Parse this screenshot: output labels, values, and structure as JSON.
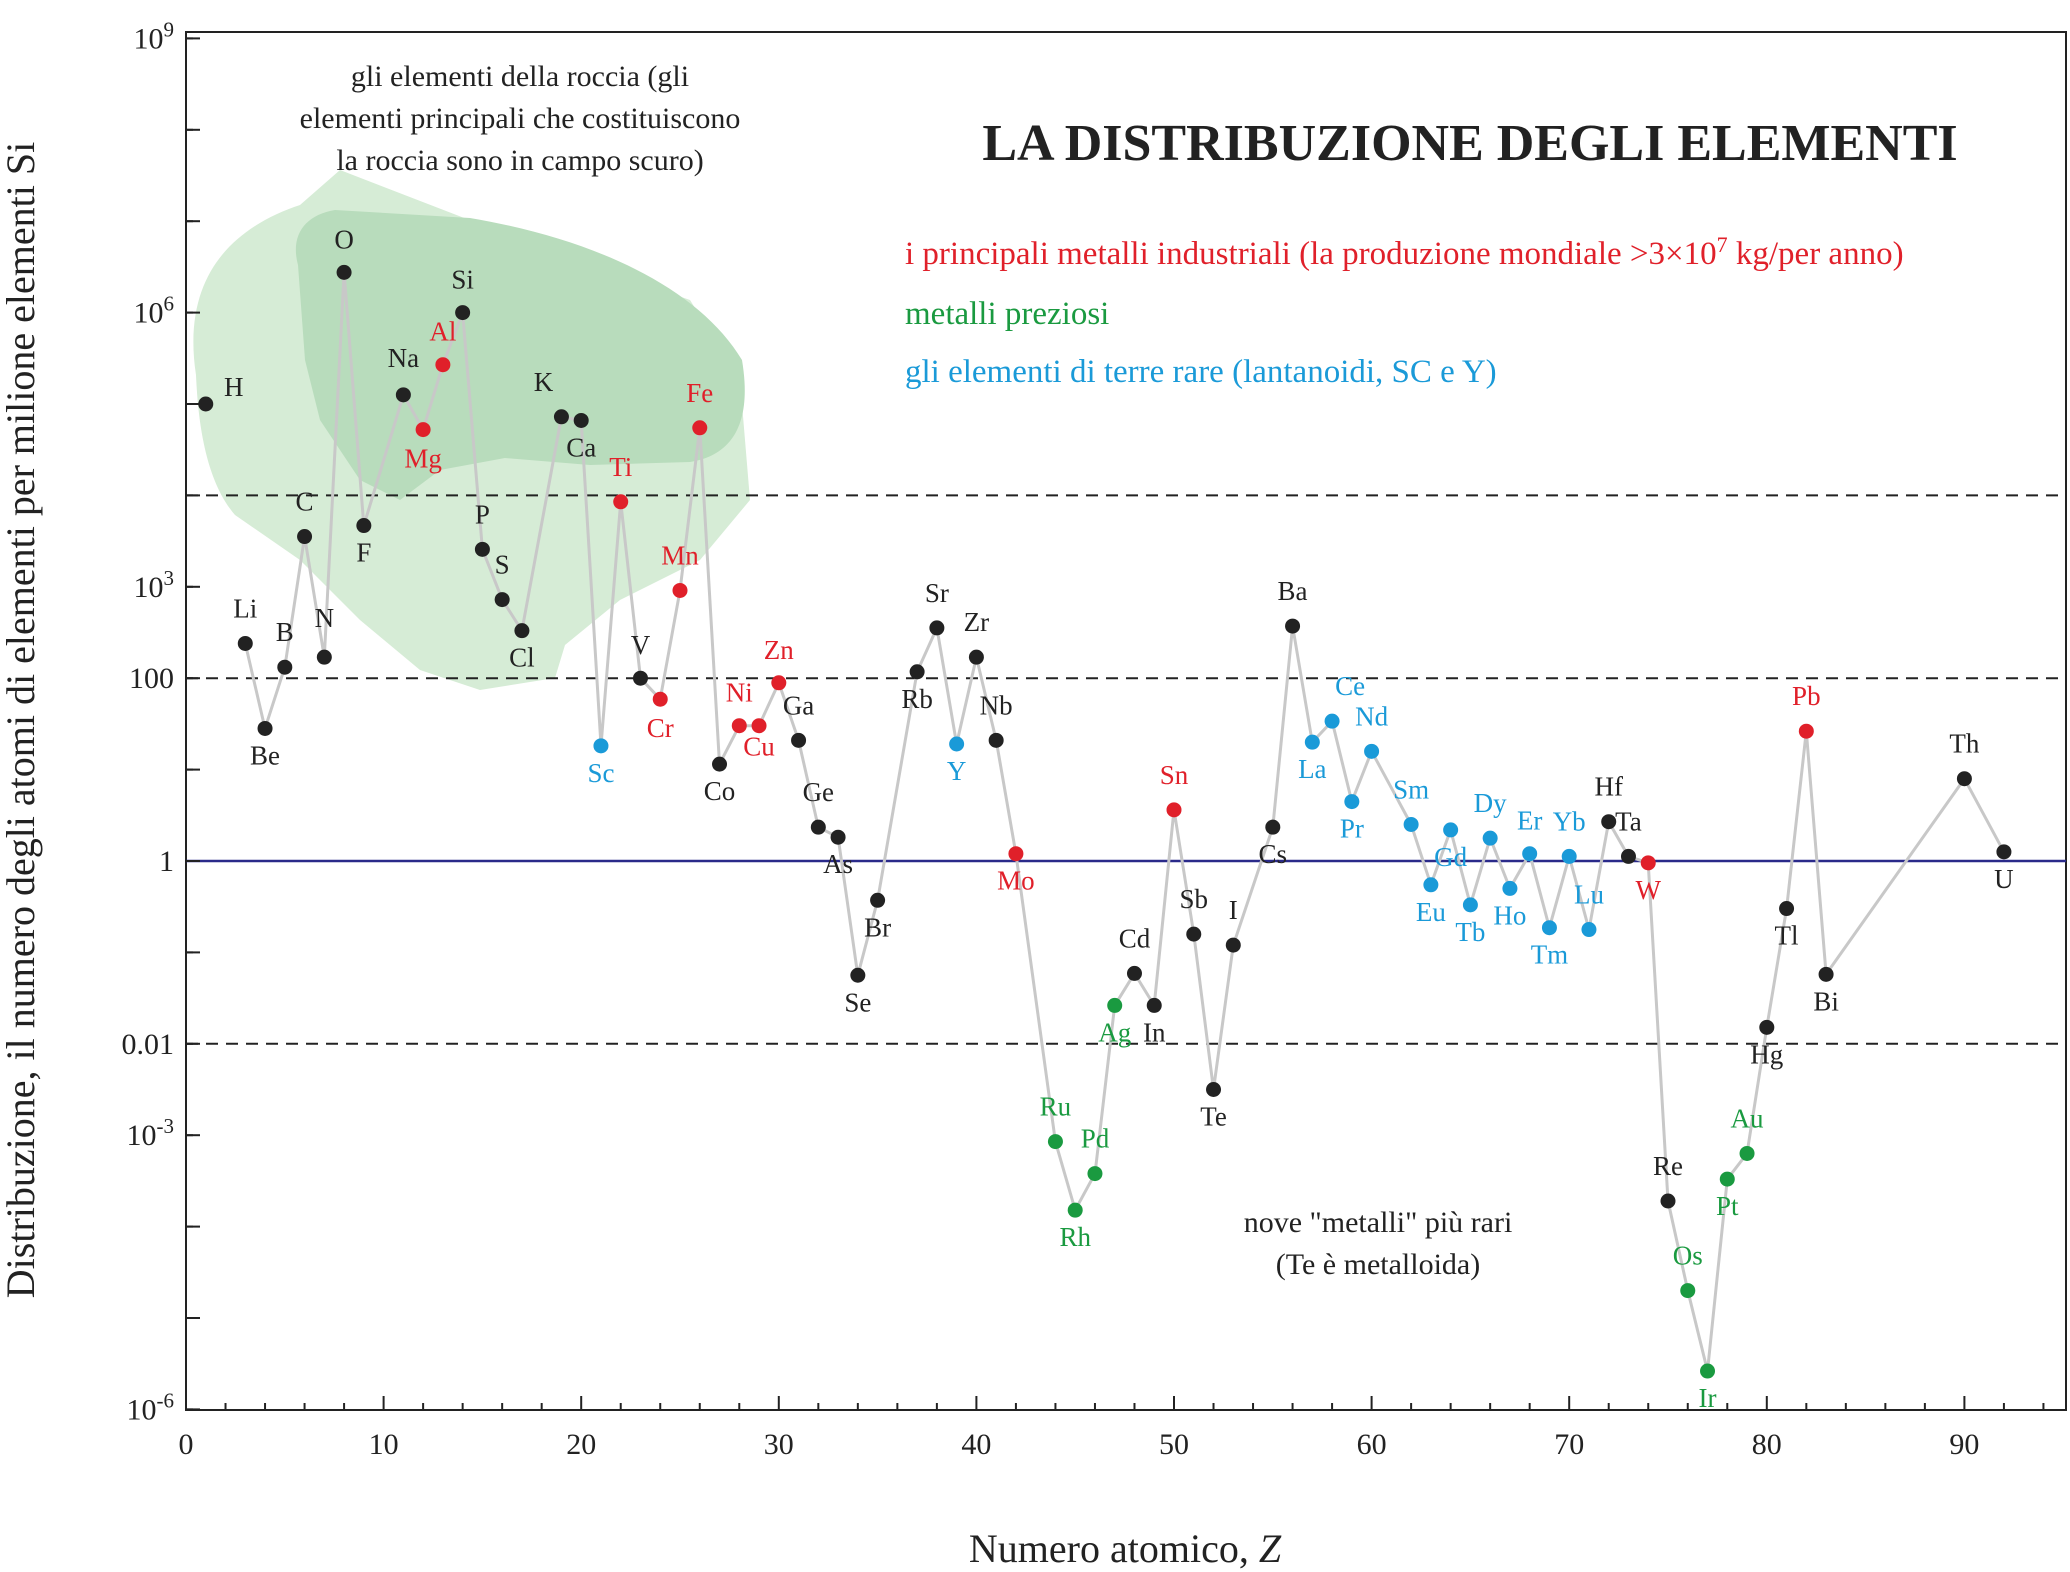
{
  "chart_data": {
    "type": "scatter",
    "title": "LA DISTRIBUZIONE DEGLI ELEMENTI",
    "xlabel_main": "Numero atomico, ",
    "xlabel_var": "Z",
    "ylabel": "Distribuzione, il numero degli atomi di elementi per milione elementi Si",
    "xlim": [
      0,
      95
    ],
    "ylim_log10": [
      -6,
      9
    ],
    "y_scale": "log",
    "xticks": [
      0,
      10,
      20,
      30,
      40,
      50,
      60,
      70,
      80,
      90
    ],
    "yticks": [
      {
        "log": 9,
        "base": "10",
        "exp": "9"
      },
      {
        "log": 6,
        "base": "10",
        "exp": "6"
      },
      {
        "log": 3,
        "base": "10",
        "exp": "3"
      },
      {
        "log": 2,
        "base": "100",
        "exp": ""
      },
      {
        "log": 0,
        "base": "1",
        "exp": ""
      },
      {
        "log": -2,
        "base": "0.01",
        "exp": ""
      },
      {
        "log": -3,
        "base": "10",
        "exp": "-3"
      },
      {
        "log": -6,
        "base": "10",
        "exp": "-6"
      }
    ],
    "reference_lines": [
      {
        "log": 4,
        "style": "dashed"
      },
      {
        "log": 2,
        "style": "dashed"
      },
      {
        "log": -2,
        "style": "dashed"
      },
      {
        "log": 0,
        "style": "solid",
        "color": "#2a2a8a"
      }
    ],
    "colors": {
      "other": "#222222",
      "industrial": "#e0202a",
      "precious": "#1a9a40",
      "rare_earth": "#1a9ad8",
      "line": "#c8c8c8",
      "region_light": "#d6ecd6",
      "region_dark": "#b8dcbc"
    },
    "elements": [
      {
        "s": "H",
        "z": 1,
        "log": 5.0,
        "c": "other",
        "dx": 28,
        "dy": -8
      },
      {
        "s": "Li",
        "z": 3,
        "log": 2.38,
        "c": "other",
        "dx": 0,
        "dy": -26
      },
      {
        "s": "Be",
        "z": 4,
        "log": 1.45,
        "c": "other",
        "dx": 0,
        "dy": 36
      },
      {
        "s": "B",
        "z": 5,
        "log": 2.12,
        "c": "other",
        "dx": 0,
        "dy": -26
      },
      {
        "s": "C",
        "z": 6,
        "log": 3.55,
        "c": "other",
        "dx": 0,
        "dy": -26
      },
      {
        "s": "N",
        "z": 7,
        "log": 2.23,
        "c": "other",
        "dx": 0,
        "dy": -30
      },
      {
        "s": "O",
        "z": 8,
        "log": 6.44,
        "c": "other",
        "dx": 0,
        "dy": -24
      },
      {
        "s": "F",
        "z": 9,
        "log": 3.67,
        "c": "other",
        "dx": 0,
        "dy": 36
      },
      {
        "s": "Na",
        "z": 11,
        "log": 5.1,
        "c": "other",
        "dx": 0,
        "dy": -28
      },
      {
        "s": "Mg",
        "z": 12,
        "log": 4.72,
        "c": "industrial",
        "dx": 0,
        "dy": 38
      },
      {
        "s": "Al",
        "z": 13,
        "log": 5.43,
        "c": "industrial",
        "dx": 0,
        "dy": -24
      },
      {
        "s": "Si",
        "z": 14,
        "log": 6.0,
        "c": "other",
        "dx": 0,
        "dy": -24
      },
      {
        "s": "P",
        "z": 15,
        "log": 3.41,
        "c": "other",
        "dx": 0,
        "dy": -26
      },
      {
        "s": "S",
        "z": 16,
        "log": 2.86,
        "c": "other",
        "dx": 0,
        "dy": -26
      },
      {
        "s": "Cl",
        "z": 17,
        "log": 2.52,
        "c": "other",
        "dx": 0,
        "dy": 36
      },
      {
        "s": "K",
        "z": 19,
        "log": 4.86,
        "c": "other",
        "dx": -18,
        "dy": -26
      },
      {
        "s": "Ca",
        "z": 20,
        "log": 4.82,
        "c": "other",
        "dx": 0,
        "dy": 36
      },
      {
        "s": "Sc",
        "z": 21,
        "log": 1.26,
        "c": "rare_earth",
        "dx": 0,
        "dy": 36
      },
      {
        "s": "Ti",
        "z": 22,
        "log": 3.93,
        "c": "industrial",
        "dx": 0,
        "dy": -26
      },
      {
        "s": "V",
        "z": 23,
        "log": 2.0,
        "c": "other",
        "dx": 0,
        "dy": -24
      },
      {
        "s": "Cr",
        "z": 24,
        "log": 1.77,
        "c": "industrial",
        "dx": 0,
        "dy": 38
      },
      {
        "s": "Mn",
        "z": 25,
        "log": 2.96,
        "c": "industrial",
        "dx": 0,
        "dy": -26
      },
      {
        "s": "Fe",
        "z": 26,
        "log": 4.74,
        "c": "industrial",
        "dx": 0,
        "dy": -26
      },
      {
        "s": "Co",
        "z": 27,
        "log": 1.06,
        "c": "other",
        "dx": 0,
        "dy": 36
      },
      {
        "s": "Ni",
        "z": 28,
        "log": 1.48,
        "c": "industrial",
        "dx": 0,
        "dy": -24
      },
      {
        "s": "Cu",
        "z": 29,
        "log": 1.48,
        "c": "industrial",
        "dx": 0,
        "dy": 30
      },
      {
        "s": "Zn",
        "z": 30,
        "log": 1.95,
        "c": "industrial",
        "dx": 0,
        "dy": -24
      },
      {
        "s": "Ga",
        "z": 31,
        "log": 1.32,
        "c": "other",
        "dx": 0,
        "dy": -26
      },
      {
        "s": "Ge",
        "z": 32,
        "log": 0.37,
        "c": "other",
        "dx": 0,
        "dy": -26
      },
      {
        "s": "As",
        "z": 33,
        "log": 0.26,
        "c": "other",
        "dx": 0,
        "dy": 36
      },
      {
        "s": "Se",
        "z": 34,
        "log": -1.25,
        "c": "other",
        "dx": 0,
        "dy": 36
      },
      {
        "s": "Br",
        "z": 35,
        "log": -0.43,
        "c": "other",
        "dx": 0,
        "dy": 36
      },
      {
        "s": "Rb",
        "z": 37,
        "log": 2.07,
        "c": "other",
        "dx": 0,
        "dy": 36
      },
      {
        "s": "Sr",
        "z": 38,
        "log": 2.55,
        "c": "other",
        "dx": 0,
        "dy": -26
      },
      {
        "s": "Y",
        "z": 39,
        "log": 1.28,
        "c": "rare_earth",
        "dx": 0,
        "dy": 36
      },
      {
        "s": "Zr",
        "z": 40,
        "log": 2.23,
        "c": "other",
        "dx": 0,
        "dy": -26
      },
      {
        "s": "Nb",
        "z": 41,
        "log": 1.32,
        "c": "other",
        "dx": 0,
        "dy": -26
      },
      {
        "s": "Mo",
        "z": 42,
        "log": 0.08,
        "c": "industrial",
        "dx": 0,
        "dy": 36
      },
      {
        "s": "Ru",
        "z": 44,
        "log": -3.07,
        "c": "precious",
        "dx": 0,
        "dy": -26
      },
      {
        "s": "Rh",
        "z": 45,
        "log": -3.82,
        "c": "precious",
        "dx": 0,
        "dy": 36
      },
      {
        "s": "Pd",
        "z": 46,
        "log": -3.42,
        "c": "precious",
        "dx": 0,
        "dy": -26
      },
      {
        "s": "Ag",
        "z": 47,
        "log": -1.58,
        "c": "precious",
        "dx": 0,
        "dy": 36
      },
      {
        "s": "Cd",
        "z": 48,
        "log": -1.23,
        "c": "other",
        "dx": 0,
        "dy": -26
      },
      {
        "s": "In",
        "z": 49,
        "log": -1.58,
        "c": "other",
        "dx": 0,
        "dy": 36
      },
      {
        "s": "Sn",
        "z": 50,
        "log": 0.56,
        "c": "industrial",
        "dx": 0,
        "dy": -26
      },
      {
        "s": "Sb",
        "z": 51,
        "log": -0.8,
        "c": "other",
        "dx": 0,
        "dy": -26
      },
      {
        "s": "Te",
        "z": 52,
        "log": -2.5,
        "c": "other",
        "dx": 0,
        "dy": 36
      },
      {
        "s": "I",
        "z": 53,
        "log": -0.92,
        "c": "other",
        "dx": 0,
        "dy": -26
      },
      {
        "s": "Cs",
        "z": 55,
        "log": 0.37,
        "c": "other",
        "dx": 0,
        "dy": 36
      },
      {
        "s": "Ba",
        "z": 56,
        "log": 2.57,
        "c": "other",
        "dx": 0,
        "dy": -26
      },
      {
        "s": "La",
        "z": 57,
        "log": 1.3,
        "c": "rare_earth",
        "dx": 0,
        "dy": 36
      },
      {
        "s": "Ce",
        "z": 58,
        "log": 1.53,
        "c": "rare_earth",
        "dx": 18,
        "dy": -26
      },
      {
        "s": "Pr",
        "z": 59,
        "log": 0.65,
        "c": "rare_earth",
        "dx": 0,
        "dy": 36
      },
      {
        "s": "Nd",
        "z": 60,
        "log": 1.2,
        "c": "rare_earth",
        "dx": 0,
        "dy": -26
      },
      {
        "s": "Sm",
        "z": 62,
        "log": 0.4,
        "c": "rare_earth",
        "dx": 0,
        "dy": -26
      },
      {
        "s": "Eu",
        "z": 63,
        "log": -0.26,
        "c": "rare_earth",
        "dx": 0,
        "dy": 36
      },
      {
        "s": "Gd",
        "z": 64,
        "log": 0.34,
        "c": "rare_earth",
        "dx": 0,
        "dy": 36
      },
      {
        "s": "Tb",
        "z": 65,
        "log": -0.48,
        "c": "rare_earth",
        "dx": 0,
        "dy": 36
      },
      {
        "s": "Dy",
        "z": 66,
        "log": 0.25,
        "c": "rare_earth",
        "dx": 0,
        "dy": -26
      },
      {
        "s": "Ho",
        "z": 67,
        "log": -0.3,
        "c": "rare_earth",
        "dx": 0,
        "dy": 36
      },
      {
        "s": "Er",
        "z": 68,
        "log": 0.08,
        "c": "rare_earth",
        "dx": 0,
        "dy": -24
      },
      {
        "s": "Tm",
        "z": 69,
        "log": -0.73,
        "c": "rare_earth",
        "dx": 0,
        "dy": 36
      },
      {
        "s": "Yb",
        "z": 70,
        "log": 0.05,
        "c": "rare_earth",
        "dx": 0,
        "dy": -26
      },
      {
        "s": "Lu",
        "z": 71,
        "log": -0.75,
        "c": "rare_earth",
        "dx": 0,
        "dy": -26
      },
      {
        "s": "Hf",
        "z": 72,
        "log": 0.43,
        "c": "other",
        "dx": 0,
        "dy": -26
      },
      {
        "s": "Ta",
        "z": 73,
        "log": 0.05,
        "c": "other",
        "dx": 0,
        "dy": -26
      },
      {
        "s": "W",
        "z": 74,
        "log": -0.02,
        "c": "industrial",
        "dx": 0,
        "dy": 36
      },
      {
        "s": "Re",
        "z": 75,
        "log": -3.72,
        "c": "other",
        "dx": 0,
        "dy": -26
      },
      {
        "s": "Os",
        "z": 76,
        "log": -4.7,
        "c": "precious",
        "dx": 0,
        "dy": -26
      },
      {
        "s": "Ir",
        "z": 77,
        "log": -5.58,
        "c": "precious",
        "dx": 0,
        "dy": 36
      },
      {
        "s": "Pt",
        "z": 78,
        "log": -3.48,
        "c": "precious",
        "dx": 0,
        "dy": 36
      },
      {
        "s": "Au",
        "z": 79,
        "log": -3.2,
        "c": "precious",
        "dx": 0,
        "dy": -26
      },
      {
        "s": "Hg",
        "z": 80,
        "log": -1.82,
        "c": "other",
        "dx": 0,
        "dy": 36
      },
      {
        "s": "Tl",
        "z": 81,
        "log": -0.52,
        "c": "other",
        "dx": 0,
        "dy": 36
      },
      {
        "s": "Pb",
        "z": 82,
        "log": 1.42,
        "c": "industrial",
        "dx": 0,
        "dy": -26
      },
      {
        "s": "Bi",
        "z": 83,
        "log": -1.24,
        "c": "other",
        "dx": 0,
        "dy": 36
      },
      {
        "s": "Th",
        "z": 90,
        "log": 0.9,
        "c": "other",
        "dx": 0,
        "dy": -26
      },
      {
        "s": "U",
        "z": 92,
        "log": 0.1,
        "c": "other",
        "dx": 0,
        "dy": 36
      }
    ],
    "breaks_after": [
      "H"
    ],
    "legend": {
      "industrial_a": "i principali metalli industriali (la produzione mondiale >3×10",
      "industrial_exp": "7",
      "industrial_b": " kg/per anno)",
      "precious": "metalli preziosi",
      "rare_earth": "gli elementi di terre rare (lantanoidi, SC e Y)"
    },
    "annotations": {
      "rock_line1": "gli elementi della roccia (gli",
      "rock_line2": "elementi principali che costituiscono",
      "rock_line3": "la roccia sono in campo scuro)",
      "rare_line1": "nove \"metalli\" più rari",
      "rare_line2": "(Te è metalloida)"
    }
  }
}
